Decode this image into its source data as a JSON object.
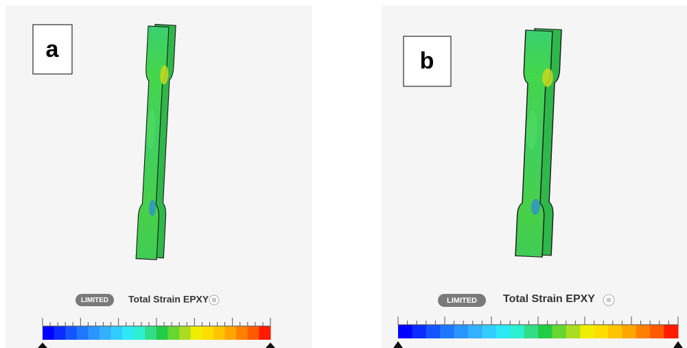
{
  "panels": [
    {
      "label": "a",
      "badge": "LIMITED",
      "legend_title": "Total Strain EPXY"
    },
    {
      "label": "b",
      "badge": "LIMITED",
      "legend_title": "Total Strain EPXY"
    }
  ]
}
